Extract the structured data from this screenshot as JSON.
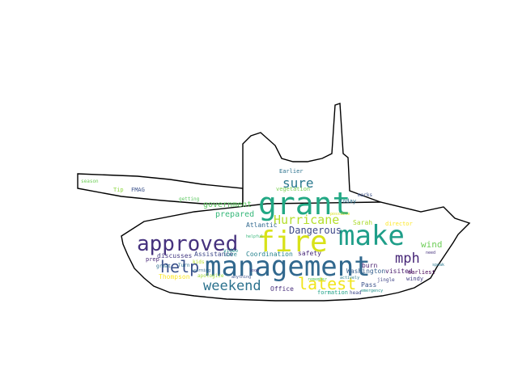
{
  "wordcloud": {
    "shape": "tank",
    "background_color": "#ffffff",
    "outline_color": "#000000",
    "colormap": "viridis",
    "words": [
      {
        "text": "management",
        "color": "#31688e"
      },
      {
        "text": "fire",
        "color": "#d8e219"
      },
      {
        "text": "make",
        "color": "#1f9e89"
      },
      {
        "text": "grant",
        "color": "#22a884"
      },
      {
        "text": "approved",
        "color": "#46327e"
      },
      {
        "text": "help",
        "color": "#3b528b"
      },
      {
        "text": "latest",
        "color": "#f1e51d"
      },
      {
        "text": "weekend",
        "color": "#2c728e"
      },
      {
        "text": "Hurricane",
        "color": "#b5de2b"
      },
      {
        "text": "mph",
        "color": "#482878"
      },
      {
        "text": "sure",
        "color": "#2a788e"
      },
      {
        "text": "prepared",
        "color": "#35b779"
      },
      {
        "text": "government",
        "color": "#5ec962"
      },
      {
        "text": "Dangerous",
        "color": "#3e4989"
      },
      {
        "text": "wind",
        "color": "#6ece58"
      },
      {
        "text": "Atlantic",
        "color": "#31688e"
      },
      {
        "text": "Coordination",
        "color": "#26828e"
      },
      {
        "text": "Assistance",
        "color": "#3e4989"
      },
      {
        "text": "safety",
        "color": "#482878"
      },
      {
        "text": "Office",
        "color": "#472d7b"
      },
      {
        "text": "Washington",
        "color": "#355f8d"
      },
      {
        "text": "Thompson",
        "color": "#fde725"
      },
      {
        "text": "discusses",
        "color": "#443983"
      },
      {
        "text": "Pass",
        "color": "#3b528b"
      },
      {
        "text": "burn",
        "color": "#481f70"
      },
      {
        "text": "formation",
        "color": "#1fa188"
      },
      {
        "text": "visited",
        "color": "#481a6c"
      },
      {
        "text": "earliest",
        "color": "#440154"
      },
      {
        "text": "windy",
        "color": "#433e85"
      },
      {
        "text": "Sarah",
        "color": "#addc30"
      },
      {
        "text": "today",
        "color": "#2d708e"
      },
      {
        "text": "Earlier",
        "color": "#2c728e"
      },
      {
        "text": "vegetation",
        "color": "#7ad151"
      },
      {
        "text": "FMAG",
        "color": "#3b528b"
      },
      {
        "text": "Tip",
        "color": "#8fd744"
      },
      {
        "text": "love",
        "color": "#26828e"
      },
      {
        "text": "great",
        "color": "#2e6e8e"
      },
      {
        "text": "apologize",
        "color": "#9fda3a"
      },
      {
        "text": "video",
        "color": "#21918c"
      },
      {
        "text": "marks",
        "color": "#3b528b"
      },
      {
        "text": "remember",
        "color": "#5ec962"
      },
      {
        "text": "jingle",
        "color": "#404688"
      },
      {
        "text": "actively",
        "color": "#287c8e"
      },
      {
        "text": "emergency",
        "color": "#20928c"
      },
      {
        "text": "director",
        "color": "#fde725"
      },
      {
        "text": "need",
        "color": "#46327e"
      },
      {
        "text": "speak",
        "color": "#2a788e"
      },
      {
        "text": "season",
        "color": "#6ece58"
      },
      {
        "text": "getting",
        "color": "#5ec962"
      },
      {
        "text": "anything",
        "color": "#3b528b"
      },
      {
        "text": "learning",
        "color": "#31688e"
      },
      {
        "text": "prep",
        "color": "#482878"
      },
      {
        "text": "Turn",
        "color": "#2c728e"
      },
      {
        "text": "kids",
        "color": "#b5de2b"
      },
      {
        "text": "head",
        "color": "#3e4989"
      },
      {
        "text": "helpful",
        "color": "#35b779"
      },
      {
        "text": "possible",
        "color": "#d8e219"
      },
      {
        "text": "loop",
        "color": "#443983"
      }
    ]
  }
}
